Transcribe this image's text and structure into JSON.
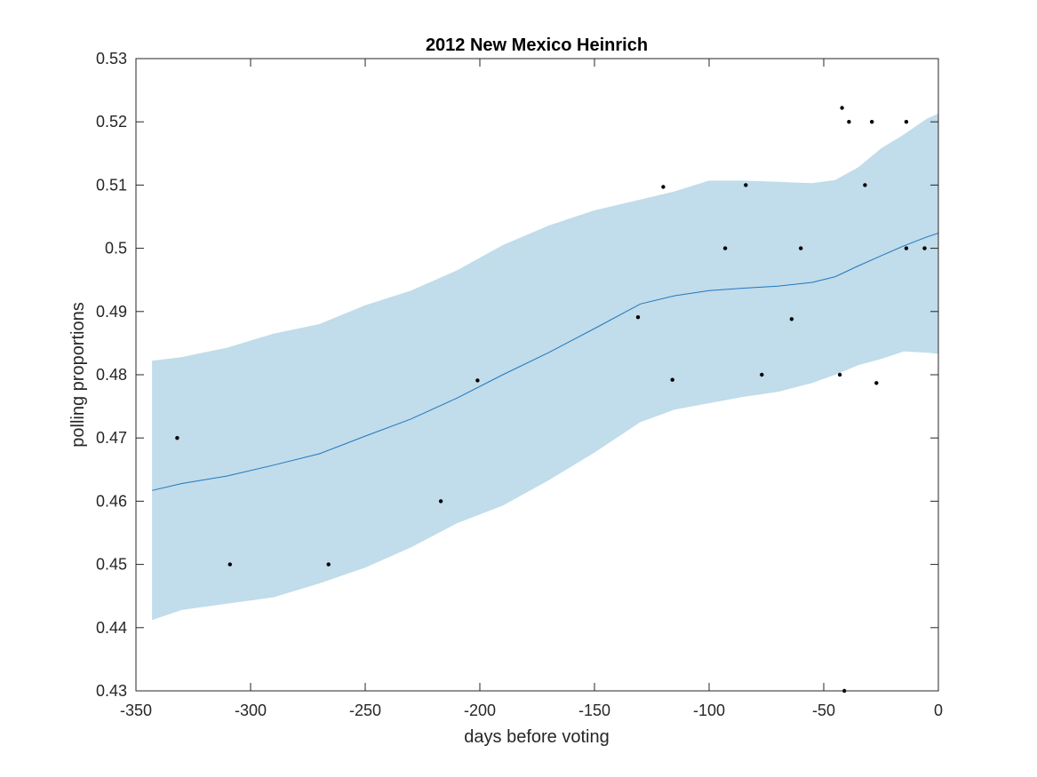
{
  "chart_data": {
    "type": "line",
    "title": "2012 New Mexico Heinrich",
    "xlabel": "days before voting",
    "ylabel": "polling proportions",
    "xlim": [
      -350,
      0
    ],
    "ylim": [
      0.43,
      0.53
    ],
    "xticks": [
      -350,
      -300,
      -250,
      -200,
      -150,
      -100,
      -50,
      0
    ],
    "xtick_labels": [
      "-350",
      "-300",
      "-250",
      "-200",
      "-150",
      "-100",
      "-50",
      "0"
    ],
    "yticks": [
      0.43,
      0.44,
      0.45,
      0.46,
      0.47,
      0.48,
      0.49,
      0.5,
      0.51,
      0.52,
      0.53
    ],
    "ytick_labels": [
      "0.43",
      "0.44",
      "0.45",
      "0.46",
      "0.47",
      "0.48",
      "0.49",
      "0.5",
      "0.51",
      "0.52",
      "0.53"
    ],
    "grid": false,
    "colors": {
      "band": "#c1dcea",
      "trend": "#1f77c0",
      "points": "#000000"
    },
    "series": [
      {
        "name": "trend",
        "kind": "line",
        "x": [
          -343,
          -330,
          -310,
          -290,
          -270,
          -250,
          -230,
          -210,
          -190,
          -170,
          -150,
          -130,
          -115,
          -100,
          -85,
          -70,
          -55,
          -45,
          -35,
          -25,
          -15,
          -5,
          0
        ],
        "y": [
          0.4617,
          0.4628,
          0.464,
          0.4657,
          0.4675,
          0.4703,
          0.473,
          0.4763,
          0.48,
          0.4835,
          0.4873,
          0.4912,
          0.4925,
          0.4933,
          0.4937,
          0.494,
          0.4946,
          0.4955,
          0.4972,
          0.4988,
          0.5004,
          0.5018,
          0.5024
        ]
      },
      {
        "name": "confidence band",
        "kind": "band",
        "x": [
          -343,
          -330,
          -310,
          -290,
          -270,
          -250,
          -230,
          -210,
          -190,
          -170,
          -150,
          -130,
          -115,
          -100,
          -85,
          -70,
          -55,
          -45,
          -35,
          -25,
          -15,
          -5,
          0
        ],
        "upper": [
          0.4822,
          0.4828,
          0.4843,
          0.4865,
          0.488,
          0.491,
          0.4933,
          0.4965,
          0.5005,
          0.5036,
          0.506,
          0.5077,
          0.509,
          0.5107,
          0.5107,
          0.5105,
          0.5103,
          0.5108,
          0.5128,
          0.5158,
          0.518,
          0.5205,
          0.5213
        ],
        "lower": [
          0.4412,
          0.4428,
          0.4438,
          0.4448,
          0.447,
          0.4495,
          0.4527,
          0.4565,
          0.4593,
          0.4633,
          0.4677,
          0.4725,
          0.4745,
          0.4755,
          0.4765,
          0.4773,
          0.4787,
          0.48,
          0.4815,
          0.4825,
          0.4837,
          0.4835,
          0.4833
        ]
      },
      {
        "name": "polls",
        "kind": "scatter",
        "x": [
          -332,
          -309,
          -266,
          -217,
          -201,
          -131,
          -120,
          -116,
          -93,
          -84,
          -77,
          -64,
          -60,
          -43,
          -42,
          -41,
          -39,
          -32,
          -29,
          -27,
          -14,
          -14,
          -6
        ],
        "y": [
          0.47,
          0.45,
          0.45,
          0.46,
          0.4791,
          0.4891,
          0.5097,
          0.4792,
          0.5,
          0.51,
          0.48,
          0.4888,
          0.5,
          0.48,
          0.5222,
          0.43,
          0.52,
          0.51,
          0.52,
          0.4787,
          0.52,
          0.5,
          0.5
        ]
      }
    ]
  }
}
